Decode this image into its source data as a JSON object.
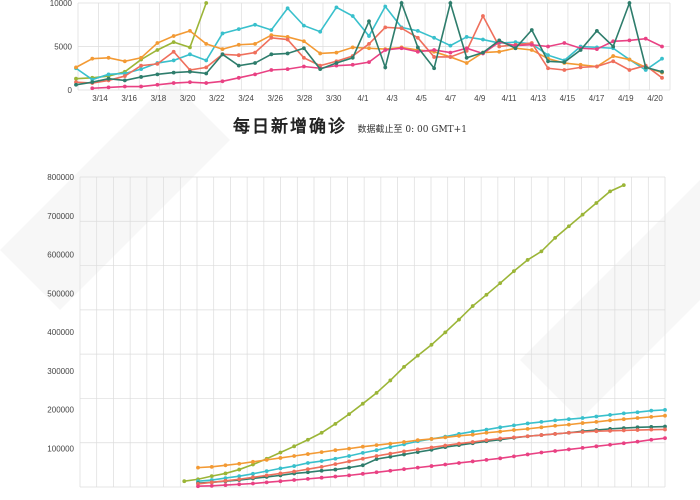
{
  "chart_data": [
    {
      "type": "line",
      "title": "",
      "xlabel": "",
      "ylabel": "",
      "ylim": [
        0,
        10000
      ],
      "yticks": [
        0,
        5000,
        10000
      ],
      "x_labels": [
        "3/14",
        "3/16",
        "3/18",
        "3/20",
        "3/22",
        "3/24",
        "3/26",
        "3/28",
        "3/30",
        "4/1",
        "4/3",
        "4/5",
        "4/7",
        "4/9",
        "4/11",
        "4/13",
        "4/15",
        "4/17",
        "4/19",
        "4/20"
      ],
      "grid": true,
      "series": [
        {
          "color": "#9bb537",
          "values": [
            1300,
            1400,
            1600,
            2100,
            3500,
            4600,
            5500,
            4900,
            10000
          ]
        },
        {
          "color": "#39c0cc",
          "values": [
            2500,
            1200,
            1800,
            1900,
            2400,
            3100,
            3400,
            4100,
            3400,
            6500,
            7000,
            7500,
            6900,
            9400,
            7400,
            6700,
            9500,
            8500,
            6200,
            9600,
            7200,
            6800,
            6000,
            5100,
            6100,
            5800,
            5400,
            5500,
            5300,
            4000,
            3400,
            5000,
            4900,
            4800,
            3500,
            2300,
            3600
          ]
        },
        {
          "color": "#f39a34",
          "values": [
            2600,
            3600,
            3700,
            3300,
            3700,
            5400,
            6200,
            6800,
            5300,
            4700,
            5200,
            5300,
            6300,
            6100,
            5600,
            4200,
            4300,
            4900,
            4800,
            4700,
            4900,
            4600,
            4400,
            3800,
            3100,
            4300,
            4400,
            4800,
            4600,
            3600,
            3100,
            2900,
            2700,
            3900,
            3500,
            2600,
            2000
          ]
        },
        {
          "color": "#ef6f5c",
          "values": [
            900,
            800,
            1100,
            1600,
            2800,
            3000,
            4400,
            2300,
            2600,
            4100,
            4000,
            4300,
            6000,
            5800,
            3700,
            2800,
            3300,
            3900,
            5300,
            7200,
            7100,
            6000,
            3800,
            3800,
            4500,
            8500,
            5000,
            5200,
            5400,
            2500,
            2300,
            2600,
            2700,
            3300,
            2300,
            2800,
            1400
          ]
        },
        {
          "color": "#e94183",
          "values": [
            200,
            300,
            400,
            400,
            600,
            800,
            900,
            800,
            1000,
            1400,
            1800,
            2300,
            2400,
            2700,
            2500,
            2800,
            2900,
            3200,
            4600,
            4800,
            4400,
            4600,
            4300,
            4800,
            4200,
            5500,
            5100,
            5200,
            5000,
            5400,
            4800,
            4700,
            5600,
            5700,
            5900,
            5000
          ]
        },
        {
          "color": "#2e7d6c",
          "values": [
            600,
            900,
            1300,
            1100,
            1500,
            1800,
            2000,
            2100,
            1900,
            4100,
            2800,
            3100,
            4100,
            4200,
            4800,
            2400,
            3100,
            3700,
            7900,
            2600,
            10000,
            4900,
            2500,
            10000,
            3700,
            4300,
            5700,
            4800,
            6900,
            3300,
            3200,
            4600,
            6800,
            5000,
            10000,
            2600,
            2100
          ]
        }
      ]
    },
    {
      "type": "line",
      "title": "每日新增确诊",
      "subtitle": "数据截止至 0: 00 GMT+1",
      "xlabel": "",
      "ylabel": "",
      "ylim": [
        0,
        800000
      ],
      "yticks": [
        100000,
        200000,
        300000,
        400000,
        500000,
        600000,
        700000,
        800000
      ],
      "grid": true,
      "series": [
        {
          "color": "#9bb537",
          "values": [
            15000,
            20000,
            28000,
            35000,
            45000,
            58000,
            73000,
            89000,
            105000,
            122000,
            140000,
            163000,
            188000,
            215000,
            243000,
            275000,
            310000,
            339000,
            367000,
            399000,
            432000,
            467000,
            496000,
            526000,
            557000,
            586000,
            608000,
            643000,
            673000,
            703000,
            733000,
            763000,
            779000
          ]
        },
        {
          "color": "#39c0cc",
          "values": [
            15000,
            18000,
            23000,
            28000,
            34000,
            41000,
            48000,
            54000,
            62000,
            67000,
            73000,
            80000,
            88000,
            95000,
            103000,
            110000,
            118000,
            124000,
            130000,
            137000,
            143000,
            148000,
            154000,
            159000,
            164000,
            168000,
            172000,
            175000,
            178000,
            182000,
            186000,
            190000,
            193000,
            197000,
            199000
          ]
        },
        {
          "color": "#f39a34",
          "values": [
            50000,
            52000,
            56000,
            60000,
            65000,
            70000,
            75000,
            80000,
            85000,
            90000,
            95000,
            99000,
            104000,
            108000,
            112000,
            116000,
            121000,
            124000,
            128000,
            132000,
            135000,
            140000,
            143000,
            147000,
            150000,
            154000,
            158000,
            161000,
            165000,
            168000,
            172000,
            175000,
            178000,
            181000,
            184000
          ]
        },
        {
          "color": "#2e7d6c",
          "values": [
            10000,
            12000,
            15000,
            18000,
            22000,
            26000,
            30000,
            35000,
            38000,
            42000,
            45000,
            50000,
            56000,
            72000,
            78000,
            84000,
            90000,
            96000,
            103000,
            108000,
            113000,
            118000,
            122000,
            127000,
            131000,
            134000,
            137000,
            140000,
            144000,
            147000,
            150000,
            152000,
            154000,
            155000,
            156000
          ]
        },
        {
          "color": "#ef6f5c",
          "values": [
            8000,
            12000,
            16000,
            20000,
            25000,
            30000,
            35000,
            40000,
            46000,
            52000,
            59000,
            66000,
            73000,
            80000,
            86000,
            92000,
            97000,
            102000,
            107000,
            112000,
            116000,
            121000,
            125000,
            128000,
            131000,
            134000,
            137000,
            140000,
            142000,
            144000,
            145000,
            146000,
            147000,
            148000,
            148500
          ]
        },
        {
          "color": "#e94183",
          "values": [
            2000,
            3000,
            5000,
            7000,
            9000,
            12000,
            15000,
            18000,
            21000,
            24000,
            27000,
            30000,
            34000,
            38000,
            42000,
            46000,
            50000,
            54000,
            58000,
            62000,
            66000,
            70000,
            74000,
            79000,
            84000,
            89000,
            93000,
            97000,
            101000,
            105000,
            109000,
            113000,
            117000,
            122000,
            126000
          ]
        }
      ]
    }
  ]
}
